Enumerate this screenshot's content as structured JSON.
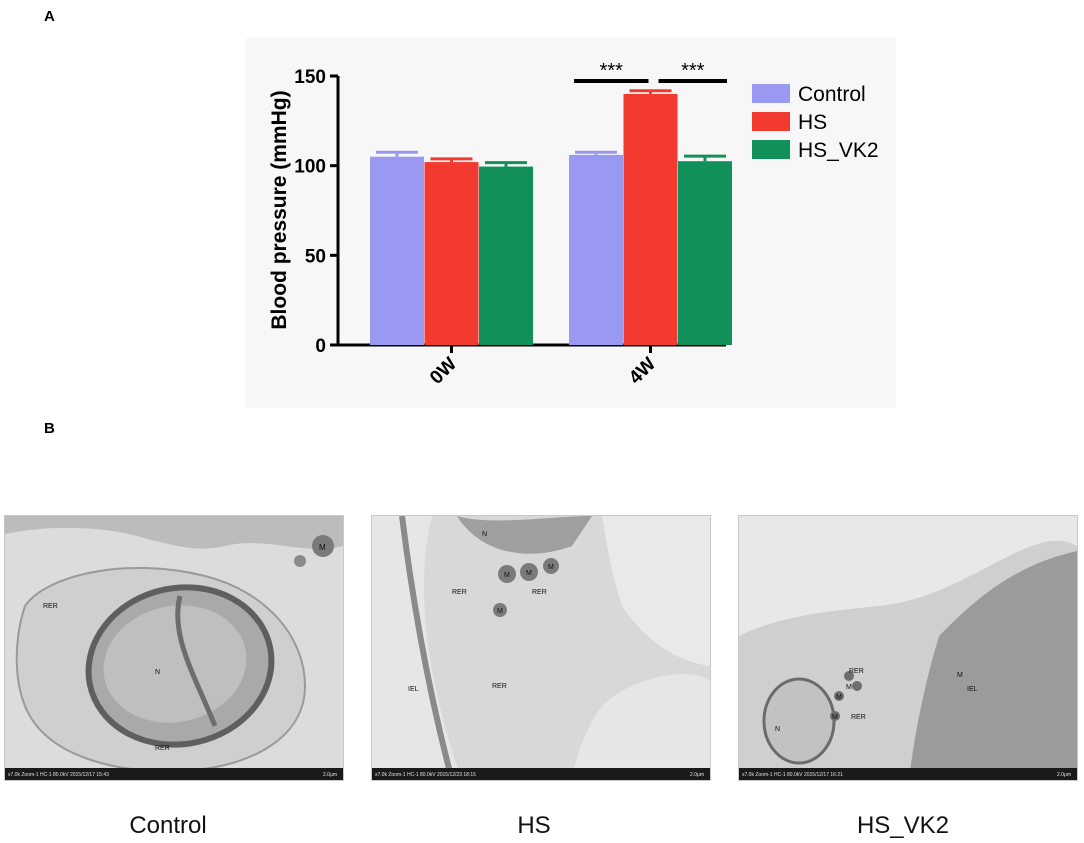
{
  "panels": {
    "a_label": "A",
    "b_label": "B"
  },
  "chart_data": {
    "type": "bar",
    "title": "",
    "xlabel": "",
    "ylabel": "Blood pressure (mmHg)",
    "ylim": [
      0,
      150
    ],
    "yticks": [
      0,
      50,
      100,
      150
    ],
    "categories": [
      "0W",
      "4W"
    ],
    "legend_position": "right",
    "grid": false,
    "series": [
      {
        "name": "Control",
        "color": "#9999f2",
        "values": [
          105,
          106
        ],
        "errors": [
          2.5,
          1.5
        ]
      },
      {
        "name": "HS",
        "color": "#f23a30",
        "values": [
          102,
          140
        ],
        "errors": [
          1.8,
          1.8
        ]
      },
      {
        "name": "HS_VK2",
        "color": "#12905a",
        "values": [
          99.5,
          102.5
        ],
        "errors": [
          2.2,
          2.8
        ]
      }
    ],
    "significance": [
      {
        "category": "4W",
        "from": "Control",
        "to": "HS",
        "label": "***"
      },
      {
        "category": "4W",
        "from": "HS",
        "to": "HS_VK2",
        "label": "***"
      }
    ]
  },
  "micrographs": [
    {
      "caption": "Control",
      "labels": [
        "M",
        "RER",
        "N",
        "RER"
      ],
      "scale_footer": "x7.0k Zoom-1 HC-1 80.0kV 2015/12/17 15:43",
      "scale_bar": "2.0μm"
    },
    {
      "caption": "HS",
      "labels": [
        "N",
        "M",
        "M",
        "M",
        "RER",
        "RER",
        "M",
        "IEL",
        "RER"
      ],
      "scale_footer": "x7.0k Zoom-1 HC-1 80.0kV 2015/12/23 18:15",
      "scale_bar": "2.0μm"
    },
    {
      "caption": "HS_VK2",
      "labels": [
        "M",
        "RER",
        "M",
        "M",
        "M",
        "RER",
        "N",
        "IEL"
      ],
      "scale_footer": "x7.0k Zoom-1 HC-1 80.0kV 2015/12/17 16:21",
      "scale_bar": "2.0μm"
    }
  ]
}
